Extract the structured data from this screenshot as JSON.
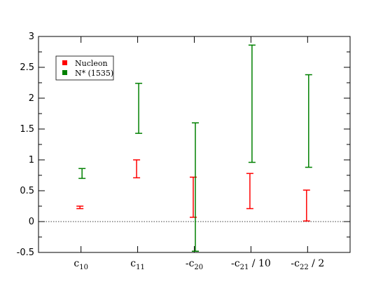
{
  "chart_data": {
    "type": "errorbar",
    "categories": [
      {
        "base": "c",
        "sub": "10",
        "suffix": ""
      },
      {
        "base": "c",
        "sub": "11",
        "suffix": ""
      },
      {
        "base": "-c",
        "sub": "20",
        "suffix": ""
      },
      {
        "base": "-c",
        "sub": "21",
        "suffix": " / 10"
      },
      {
        "base": "-c",
        "sub": "22",
        "suffix": " / 2"
      }
    ],
    "ylim": [
      -0.5,
      3
    ],
    "yticks": [
      -0.5,
      0,
      0.5,
      1,
      1.5,
      2,
      2.5,
      3
    ],
    "ytick_labels": [
      "-0.5",
      "0",
      "0.5",
      "1",
      "1.5",
      "2",
      "2.5",
      "3"
    ],
    "reference_line": {
      "y": 0,
      "style": "dotted"
    },
    "legend": {
      "position": "top-left"
    },
    "series": [
      {
        "name": "Nucleon",
        "color": "#ff0000",
        "intervals": [
          [
            0.21,
            0.25
          ],
          [
            0.71,
            1.0
          ],
          [
            0.07,
            0.72
          ],
          [
            0.21,
            0.78
          ],
          [
            0.01,
            0.51
          ]
        ]
      },
      {
        "name": "N* (1535)",
        "color": "#008000",
        "intervals": [
          [
            0.7,
            0.86
          ],
          [
            1.43,
            2.24
          ],
          [
            -0.48,
            1.6
          ],
          [
            0.96,
            2.86
          ],
          [
            0.88,
            2.38
          ]
        ]
      }
    ]
  }
}
